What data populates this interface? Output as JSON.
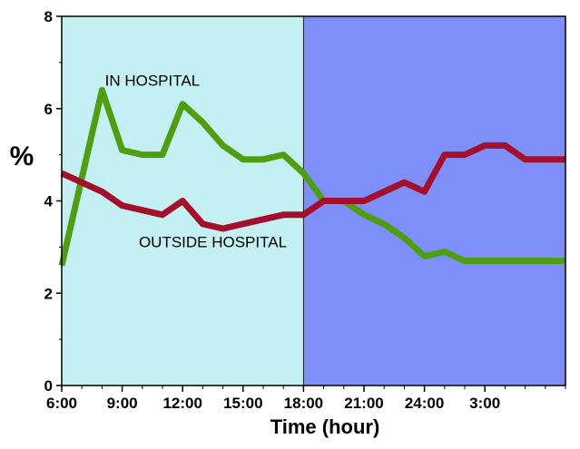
{
  "chart_data": {
    "type": "line",
    "title": "",
    "xlabel": "Time (hour)",
    "ylabel": "%",
    "x_range": [
      6,
      31
    ],
    "ylim": [
      0,
      8
    ],
    "x_ticks": [
      {
        "value": 6,
        "label": "6:00"
      },
      {
        "value": 9,
        "label": "9:00"
      },
      {
        "value": 12,
        "label": "12:00"
      },
      {
        "value": 15,
        "label": "15:00"
      },
      {
        "value": 18,
        "label": "18:00"
      },
      {
        "value": 21,
        "label": "21:00"
      },
      {
        "value": 24,
        "label": "24:00"
      },
      {
        "value": 27,
        "label": "3:00"
      }
    ],
    "y_ticks": [
      {
        "value": 0,
        "label": "0"
      },
      {
        "value": 2,
        "label": "2"
      },
      {
        "value": 4,
        "label": "4"
      },
      {
        "value": 6,
        "label": "6"
      },
      {
        "value": 8,
        "label": "8"
      }
    ],
    "background_bands": [
      {
        "from": 6,
        "to": 18,
        "color": "#c4f0f4"
      },
      {
        "from": 18,
        "to": 31,
        "color": "#7f8ff9"
      }
    ],
    "grid": false,
    "legend": "none",
    "series": [
      {
        "name": "IN HOSPITAL",
        "color": "#4f9e12",
        "label_at": {
          "x": 10.5,
          "y": 6.5
        },
        "x": [
          6,
          8,
          9,
          10,
          11,
          12,
          13,
          14,
          15,
          16,
          17,
          18,
          19,
          20,
          21,
          22,
          23,
          24,
          25,
          26,
          27,
          28,
          29,
          30,
          31
        ],
        "values": [
          2.6,
          6.4,
          5.1,
          5.0,
          5.0,
          6.1,
          5.7,
          5.2,
          4.9,
          4.9,
          5.0,
          4.6,
          4.0,
          4.0,
          3.7,
          3.5,
          3.2,
          2.8,
          2.9,
          2.7,
          2.7,
          2.7,
          2.7,
          2.7,
          2.7
        ]
      },
      {
        "name": "OUTSIDE HOSPITAL",
        "color": "#a3102c",
        "label_at": {
          "x": 13.5,
          "y": 3.0
        },
        "x": [
          6,
          8,
          9,
          10,
          11,
          12,
          13,
          14,
          15,
          16,
          17,
          18,
          19,
          20,
          21,
          22,
          23,
          24,
          25,
          26,
          27,
          28,
          29,
          30,
          31
        ],
        "values": [
          4.6,
          4.2,
          3.9,
          3.8,
          3.7,
          4.0,
          3.5,
          3.4,
          3.5,
          3.6,
          3.7,
          3.7,
          4.0,
          4.0,
          4.0,
          4.2,
          4.4,
          4.2,
          5.0,
          5.0,
          5.2,
          5.2,
          4.9,
          4.9,
          4.9
        ]
      }
    ]
  }
}
